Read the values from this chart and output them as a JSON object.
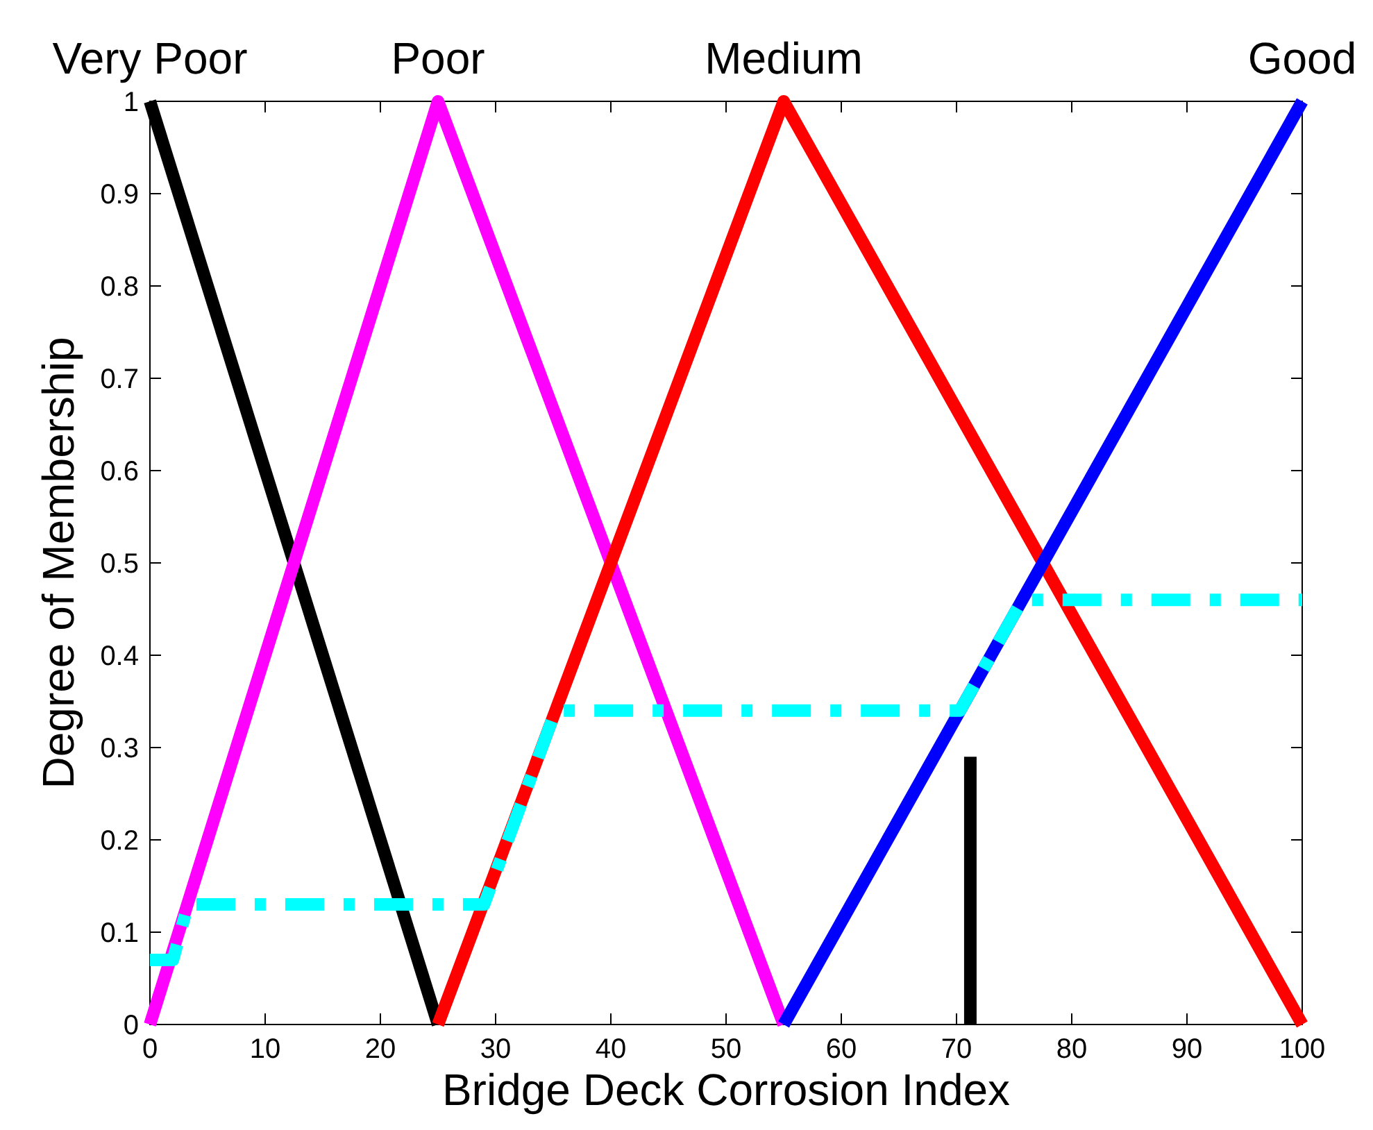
{
  "chart_data": {
    "type": "line",
    "xlabel": "Bridge Deck Corrosion Index",
    "ylabel": "Degree of Membership",
    "xlim": [
      0,
      100
    ],
    "ylim": [
      0,
      1
    ],
    "xticks": [
      0,
      10,
      20,
      30,
      40,
      50,
      60,
      70,
      80,
      90,
      100
    ],
    "yticks": [
      0,
      0.1,
      0.2,
      0.3,
      0.4,
      0.5,
      0.6,
      0.7,
      0.8,
      0.9,
      1
    ],
    "grid": false,
    "marker": "none",
    "series": [
      {
        "name": "Very Poor",
        "color": "#000000",
        "x": [
          0,
          25
        ],
        "values": [
          1,
          0
        ]
      },
      {
        "name": "Poor",
        "color": "#ff00ff",
        "x": [
          0,
          25,
          55
        ],
        "values": [
          0,
          1,
          0
        ]
      },
      {
        "name": "Medium",
        "color": "#ff0000",
        "x": [
          25,
          55,
          100
        ],
        "values": [
          0,
          1,
          0
        ]
      },
      {
        "name": "Good",
        "color": "#0000ff",
        "x": [
          55,
          100
        ],
        "values": [
          0,
          1
        ]
      },
      {
        "color": "#00ffff",
        "line_style": "dashed",
        "x": [
          0,
          2,
          3.3,
          29,
          35.2,
          70.3,
          75.7,
          100
        ],
        "values": [
          0.07,
          0.07,
          0.13,
          0.13,
          0.34,
          0.34,
          0.46,
          0.46
        ]
      },
      {
        "color": "#000000",
        "x": [
          71.2,
          71.2
        ],
        "values": [
          0.29,
          0
        ]
      }
    ]
  }
}
